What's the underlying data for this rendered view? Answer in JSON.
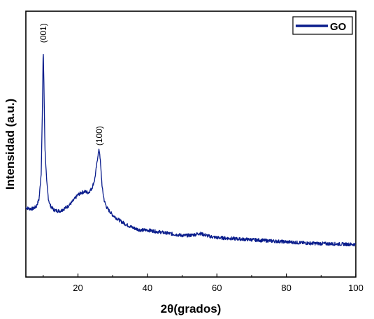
{
  "chart_data": {
    "type": "line",
    "title": "",
    "xlabel": "2θ(grados)",
    "ylabel": "Intensidad (a.u.)",
    "xlim": [
      5,
      100
    ],
    "ylim": [
      0,
      100
    ],
    "xticks": [
      20,
      40,
      60,
      80,
      100
    ],
    "ytick_labels_shown": false,
    "grid": false,
    "legend": {
      "placement": "top-right"
    },
    "series": [
      {
        "name": "GO",
        "color": "#0a1d8c",
        "x": [
          5,
          6,
          7,
          8,
          8.8,
          9.4,
          9.8,
          10.0,
          10.2,
          10.5,
          11,
          11.5,
          12,
          13,
          14,
          15,
          16,
          17,
          18,
          19,
          20,
          21,
          22,
          23,
          24,
          24.8,
          25.4,
          25.8,
          26.1,
          26.3,
          26.6,
          27,
          27.6,
          28.3,
          29,
          30,
          32,
          34,
          36,
          38,
          40,
          42,
          44,
          46,
          48,
          50,
          52,
          54,
          55,
          56,
          58,
          60,
          65,
          70,
          75,
          80,
          85,
          90,
          95,
          100
        ],
        "y": [
          20,
          19.5,
          19.5,
          20.5,
          24,
          36,
          70,
          95,
          78,
          48,
          32,
          24,
          21,
          19,
          18.5,
          18.5,
          19.5,
          20.5,
          22,
          24,
          26,
          27,
          27.5,
          27,
          29,
          33,
          40,
          45,
          47,
          45,
          38,
          29,
          23,
          20,
          18.5,
          16.5,
          14,
          12,
          10.5,
          9.5,
          9.5,
          9,
          8.5,
          8,
          7.5,
          7,
          7,
          7.5,
          8,
          7.5,
          6.5,
          6,
          5.5,
          5,
          4.5,
          4,
          3.5,
          3.2,
          3,
          2.8
        ]
      }
    ],
    "annotations": [
      {
        "text": "(001)",
        "x": 10.0,
        "y": 95
      },
      {
        "text": "(100)",
        "x": 26.1,
        "y": 47
      }
    ]
  }
}
